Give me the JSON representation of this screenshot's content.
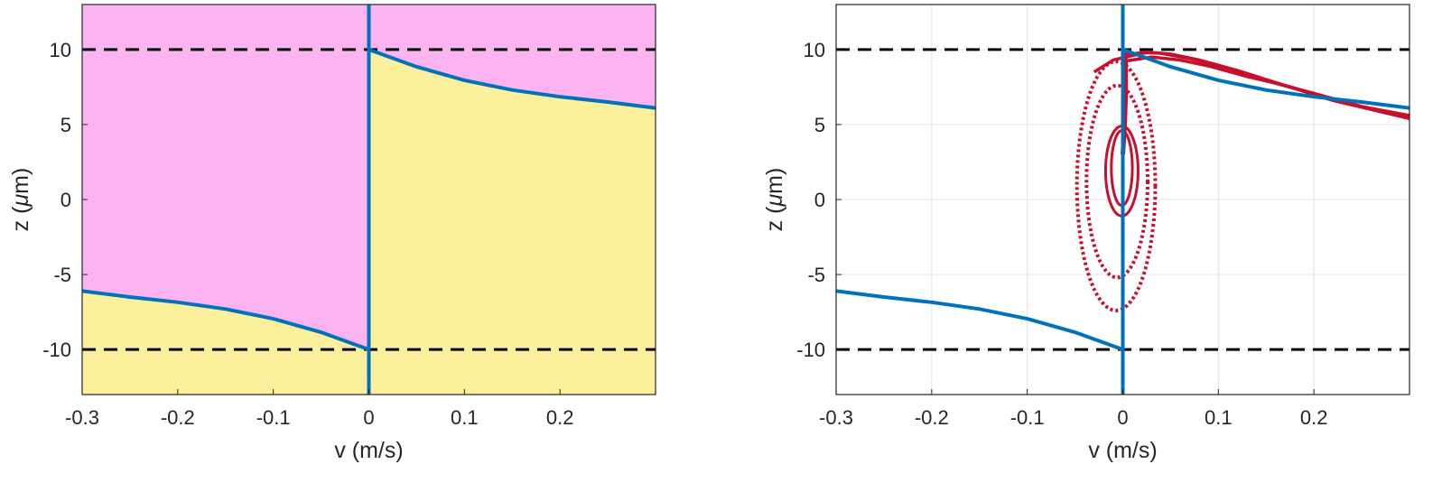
{
  "chart_data": [
    {
      "type": "area",
      "xlabel": "v (m/s)",
      "ylabel": "z (μm)",
      "ylabel_prefix": "z (",
      "ylabel_mu": "μ",
      "ylabel_suffix": "m)",
      "xlim": [
        -0.3,
        0.3
      ],
      "ylim": [
        -13,
        13
      ],
      "xticks": [
        -0.3,
        -0.2,
        -0.1,
        0,
        0.1,
        0.2
      ],
      "xtick_labels": [
        "-0.3",
        "-0.2",
        "-0.1",
        "0",
        "0.1",
        "0.2"
      ],
      "yticks": [
        -10,
        -5,
        0,
        5,
        10
      ],
      "ytick_labels": [
        "-10",
        "-5",
        "0",
        "5",
        "10"
      ],
      "grid": false,
      "colors": {
        "region_a": "#fbb4f1",
        "region_b": "#fdf09c",
        "curve": "#0072bd",
        "dashed": "#000000"
      },
      "dashed_lines_y": [
        10,
        -10
      ],
      "vertical_line_x": 0,
      "boundary_right": {
        "x": [
          0,
          0.05,
          0.1,
          0.15,
          0.2,
          0.25,
          0.3
        ],
        "y": [
          10,
          8.85,
          7.95,
          7.3,
          6.85,
          6.5,
          6.1
        ]
      },
      "boundary_left": {
        "x": [
          -0.3,
          -0.25,
          -0.2,
          -0.15,
          -0.1,
          -0.05,
          0
        ],
        "y": [
          -6.1,
          -6.5,
          -6.85,
          -7.3,
          -7.95,
          -8.85,
          -10
        ]
      }
    },
    {
      "type": "line",
      "xlabel": "v (m/s)",
      "ylabel": "z (μm)",
      "ylabel_prefix": "z (",
      "ylabel_mu": "μ",
      "ylabel_suffix": "m)",
      "xlim": [
        -0.3,
        0.3
      ],
      "ylim": [
        -13,
        13
      ],
      "xticks": [
        -0.3,
        -0.2,
        -0.1,
        0,
        0.1,
        0.2
      ],
      "xtick_labels": [
        "-0.3",
        "-0.2",
        "-0.1",
        "0",
        "0.1",
        "0.2"
      ],
      "yticks": [
        -10,
        -5,
        0,
        5,
        10
      ],
      "ytick_labels": [
        "-10",
        "-5",
        "0",
        "5",
        "10"
      ],
      "grid": true,
      "colors": {
        "curve": "#0072bd",
        "trajectory": "#c8102e",
        "dashed": "#000000"
      },
      "dashed_lines_y": [
        10,
        -10
      ],
      "vertical_line_x": 0,
      "vertical_line_ylim": [
        -13,
        13
      ],
      "boundary_right": {
        "x": [
          0,
          0.05,
          0.1,
          0.15,
          0.2,
          0.25,
          0.3
        ],
        "y": [
          10,
          8.85,
          7.95,
          7.3,
          6.85,
          6.5,
          6.1
        ]
      },
      "boundary_left": {
        "x": [
          -0.3,
          -0.25,
          -0.2,
          -0.15,
          -0.1,
          -0.05,
          0
        ],
        "y": [
          -6.1,
          -6.5,
          -6.85,
          -7.3,
          -7.95,
          -8.85,
          -10
        ]
      },
      "trajectory_loops": [
        {
          "center": [
            -0.007,
            0.9
          ],
          "rx": 0.041,
          "ry": 8.3,
          "style": "dotted"
        },
        {
          "center": [
            -0.006,
            1.2
          ],
          "rx": 0.032,
          "ry": 6.4,
          "style": "dotted"
        },
        {
          "center": [
            -0.001,
            1.9
          ],
          "rx": 0.017,
          "ry": 3.0,
          "style": "solid"
        },
        {
          "center": [
            -0.001,
            2.1
          ],
          "rx": 0.011,
          "ry": 2.5,
          "style": "solid"
        }
      ],
      "trajectory_upper": [
        {
          "x": [
            -0.03,
            -0.01,
            0.0,
            0.01,
            0.02,
            0.03,
            0.05,
            0.08,
            0.12,
            0.16,
            0.2,
            0.25,
            0.3
          ],
          "y": [
            8.5,
            9.3,
            9.45,
            9.6,
            9.75,
            9.8,
            9.7,
            9.3,
            8.6,
            7.8,
            7.0,
            6.2,
            5.5
          ]
        },
        {
          "x": [
            0.0,
            0.02,
            0.04,
            0.07,
            0.1,
            0.14,
            0.18,
            0.22,
            0.26,
            0.3
          ],
          "y": [
            9.6,
            9.8,
            9.75,
            9.4,
            8.9,
            8.1,
            7.4,
            6.6,
            6.0,
            5.4
          ]
        },
        {
          "x": [
            0.0,
            0.03,
            0.06,
            0.09,
            0.13,
            0.17,
            0.21,
            0.25,
            0.3
          ],
          "y": [
            9.2,
            9.5,
            9.3,
            8.9,
            8.2,
            7.6,
            6.9,
            6.2,
            5.6
          ]
        }
      ],
      "trajectory_stem": {
        "x": [
          0.0,
          0.002,
          0.003,
          0.003,
          0.002
        ],
        "y": [
          3.0,
          5.0,
          7.0,
          9.0,
          9.8
        ]
      }
    }
  ]
}
